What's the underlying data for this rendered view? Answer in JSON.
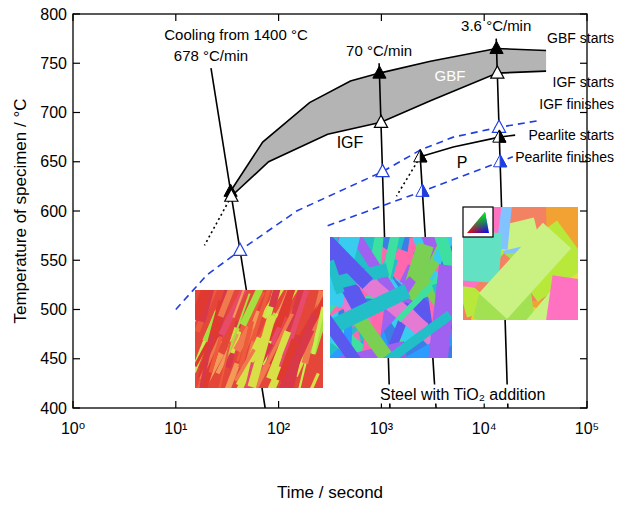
{
  "chart_data": {
    "type": "line",
    "xlabel": "Time / second",
    "ylabel": "Temperature of specimen / °C",
    "log": "x",
    "grid": false,
    "xlim": [
      1,
      100000
    ],
    "ylim": [
      400,
      800
    ],
    "xticks": [
      {
        "value": 1,
        "label": "10⁰"
      },
      {
        "value": 10,
        "label": "10¹"
      },
      {
        "value": 100,
        "label": "10²"
      },
      {
        "value": 1000,
        "label": "10³"
      },
      {
        "value": 10000,
        "label": "10⁴"
      },
      {
        "value": 100000,
        "label": "10⁵"
      }
    ],
    "yticks": [
      400,
      450,
      500,
      550,
      600,
      650,
      700,
      750,
      800
    ],
    "annotations": [
      "Cooling from 1400 °C",
      "GBF",
      "IGF",
      "P",
      "Steel with TiO₂ addition"
    ],
    "series": [
      {
        "name": "678 °C/min",
        "type": "line",
        "color": "#000000",
        "line_style": "solid",
        "x": [
          22,
          74
        ],
        "values": [
          745,
          400
        ]
      },
      {
        "name": "70 °C/min",
        "type": "line",
        "color": "#000000",
        "line_style": "solid",
        "x": [
          950,
          1210
        ],
        "values": [
          750,
          400
        ]
      },
      {
        "type": "line",
        "color": "#000000",
        "line_style": "solid",
        "x": [
          2370,
          3400
        ],
        "values": [
          660,
          400
        ]
      },
      {
        "name": "3.6 °C/min",
        "type": "line",
        "color": "#000000",
        "line_style": "solid",
        "x": [
          13090,
          17000
        ],
        "values": [
          775,
          400
        ]
      },
      {
        "type": "area",
        "color": "#b4b4b4",
        "x": [
          34.1,
          70,
          200,
          500,
          957,
          3000,
          13180,
          40000,
          40000,
          13415,
          3000,
          991,
          300,
          80,
          34.7
        ],
        "values": [
          620,
          670,
          710,
          732,
          740,
          752,
          765,
          763,
          742,
          740,
          712,
          690,
          678,
          650,
          615
        ]
      },
      {
        "name": "GBF starts",
        "type": "line",
        "color": "#000000",
        "line_style": "solid",
        "x": [
          34.1,
          70,
          200,
          500,
          957,
          3000,
          13180,
          40000
        ],
        "values": [
          620,
          670,
          710,
          732,
          740,
          752,
          765,
          763
        ]
      },
      {
        "name": "IGF starts",
        "type": "line",
        "color": "#000000",
        "line_style": "solid",
        "x": [
          34.7,
          80,
          300,
          991,
          3000,
          13415,
          40000
        ],
        "values": [
          615,
          650,
          678,
          690,
          712,
          740,
          742
        ]
      },
      {
        "name": "IGF finishes",
        "type": "line",
        "color": "#1f3fe0",
        "line_style": "dashed",
        "x": [
          10,
          20,
          42.2,
          150,
          1026,
          2400,
          5000,
          13940,
          35000
        ],
        "values": [
          500,
          535,
          560,
          600,
          640,
          662,
          675,
          685,
          692
        ]
      },
      {
        "name": "Pearlite starts",
        "type": "line",
        "color": "#000000",
        "line_style": "solid",
        "x": [
          2388,
          5000,
          14040,
          20000
        ],
        "values": [
          655,
          665,
          675,
          677
        ]
      },
      {
        "name": "Pearlite finishes",
        "type": "line",
        "color": "#1f3fe0",
        "line_style": "dashed",
        "x": [
          300,
          1000,
          2506,
          6000,
          14285,
          19000
        ],
        "values": [
          585,
          605,
          620,
          635,
          650,
          655
        ]
      },
      {
        "type": "line",
        "color": "#000000",
        "line_style": "dotted",
        "x": [
          34.7,
          19
        ],
        "values": [
          615,
          565
        ]
      },
      {
        "type": "line",
        "color": "#000000",
        "line_style": "dotted",
        "x": [
          2388,
          1400
        ],
        "values": [
          655,
          615
        ]
      },
      {
        "type": "scatter",
        "marker": "triangle-filled",
        "color": "#000000",
        "x": [
          34.1,
          957,
          13180
        ],
        "values": [
          620,
          740,
          765
        ]
      },
      {
        "type": "scatter",
        "marker": "triangle-open",
        "color": "#000000",
        "x": [
          34.7,
          991,
          13415
        ],
        "values": [
          615,
          690,
          740
        ]
      },
      {
        "type": "scatter",
        "marker": "triangle-open",
        "color": "#1f3fe0",
        "x": [
          42.2,
          1026,
          13940
        ],
        "values": [
          560,
          640,
          685
        ]
      },
      {
        "type": "scatter",
        "marker": "triangle-half",
        "color": "#000000",
        "x": [
          2388,
          14040
        ],
        "values": [
          655,
          675
        ]
      },
      {
        "type": "scatter",
        "marker": "triangle-half",
        "color": "#1f3fe0",
        "x": [
          2506,
          14285
        ],
        "values": [
          620,
          650
        ]
      }
    ]
  }
}
